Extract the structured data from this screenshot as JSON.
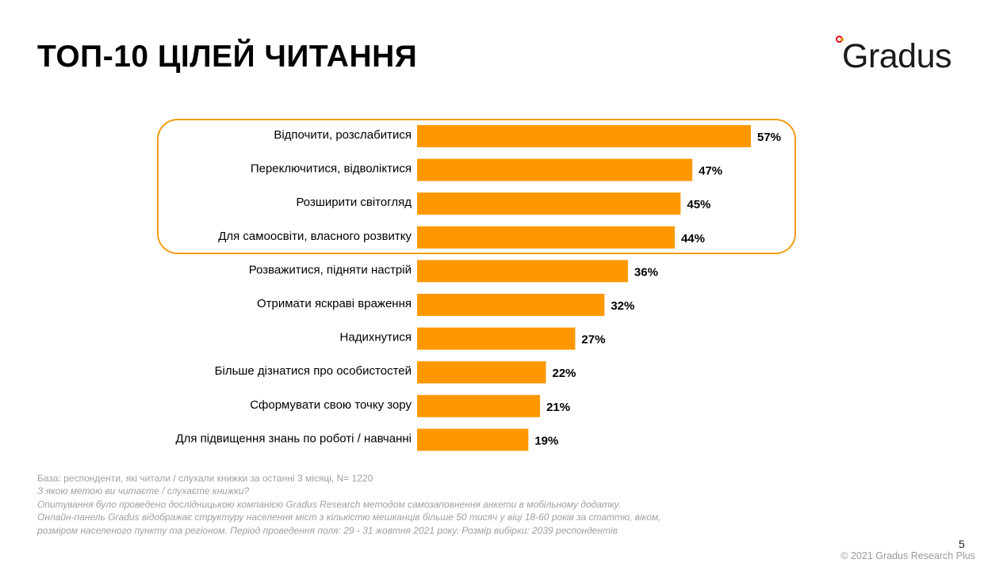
{
  "slide": {
    "title": "ТОП-10 ЦІЛЕЙ ЧИТАННЯ",
    "logo_text": "Gradus",
    "page_number": "5",
    "copyright": "© 2021 Gradus Research Plus"
  },
  "footnotes": {
    "base": "База: респонденти, які читали / слухали книжки за останні 3 місяці, N= 1220",
    "question": "З якою метою ви читаєте / слухаєте книжки?",
    "method": "Опитування  було  проведено  дослідницькою  компанією  Gradus  Research методом самозаповнення анкети в мобільному додатку.",
    "panel_line1": "Онлайн-панель Gradus відображає структуру населення міст з кількістю мешканців більше 50 тисяч у віці 18-60 років за статтю, віком,",
    "panel_line2": "розміром населеного пункту та регіоном. Період проведення поля: 29 - 31 жовтня 2021 року. Розмір вибірки: 2039 респондентів"
  },
  "colors": {
    "bar": "#ff9800",
    "highlight": "#f39c12",
    "brand_red": "#e30613",
    "brand_orange": "#f39200"
  },
  "chart_data": {
    "type": "bar",
    "orientation": "horizontal",
    "categories": [
      "Відпочити, розслабитися",
      "Переключитися, відволіктися",
      "Розширити світогляд",
      "Для самоосвіти, власного розвитку",
      "Розважитися, підняти настрій",
      "Отримати яскраві враження",
      "Надихнутися",
      "Більше дізнатися про особистостей",
      "Сформувати свою точку зору",
      "Для підвищення знань по роботі / навчанні"
    ],
    "values": [
      57,
      47,
      45,
      44,
      36,
      32,
      27,
      22,
      21,
      19
    ],
    "value_labels": [
      "57%",
      "47%",
      "45%",
      "44%",
      "36%",
      "32%",
      "27%",
      "22%",
      "21%",
      "19%"
    ],
    "unit": "%",
    "highlighted_categories": [
      0,
      1,
      2,
      3
    ],
    "xlim": [
      0,
      57
    ],
    "grid": false,
    "legend": "none"
  }
}
